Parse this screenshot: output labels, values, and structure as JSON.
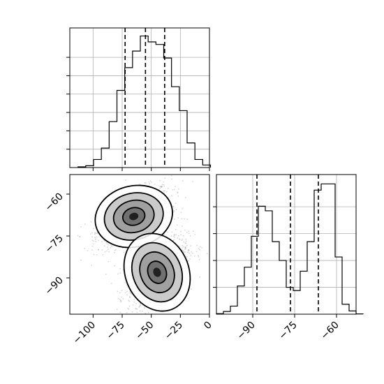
{
  "chart_data": [
    {
      "type": "histogram",
      "panel": "top-left",
      "grid": true,
      "xlim": [
        -120,
        0
      ],
      "bin_start": -113,
      "bin_width": 6.7,
      "counts": [
        0.2,
        0.5,
        2.2,
        5.3,
        12.5,
        21.0,
        27.2,
        31.7,
        35.8,
        34.2,
        33.5,
        29.8,
        22.0,
        15.5,
        6.7,
        2.2,
        0.7
      ],
      "ylim": [
        0,
        38
      ],
      "quantiles": [
        -72.5,
        -55,
        -38.5
      ],
      "ytick_positions": [
        5,
        10,
        15,
        20,
        25,
        30
      ]
    },
    {
      "type": "histogram",
      "panel": "bottom-right",
      "grid": true,
      "xlim": [
        -103,
        -53
      ],
      "bin_start": -103,
      "bin_width": 2.5,
      "counts": [
        0.2,
        1.0,
        3.0,
        10.5,
        17.5,
        29.0,
        40.2,
        38.5,
        27.0,
        20.0,
        10.0,
        8.8,
        16.0,
        27.0,
        46.2,
        48.5,
        48.5,
        21.3,
        3.7,
        1.2,
        0.1
      ],
      "ylim": [
        0,
        52
      ],
      "quantiles": [
        -88.5,
        -76.5,
        -66.5
      ],
      "ytick_positions": [
        10,
        20,
        30,
        40
      ]
    },
    {
      "type": "heatmap",
      "panel": "bottom-left",
      "xlim": [
        -120,
        0
      ],
      "ylim": [
        -103,
        -53
      ],
      "xticks": [
        -100,
        -75,
        -50,
        -25,
        0
      ],
      "yticks": [
        -60,
        -75,
        -90
      ],
      "xtick_labels": [
        "−100",
        "−75",
        "−50",
        "−25",
        "0"
      ],
      "ytick_labels": [
        "−60",
        "−75",
        "−90"
      ],
      "clusters": [
        {
          "cx": -65,
          "cy": -68,
          "sx": 16,
          "sy": 5.2,
          "rho": 0.55,
          "n": 1100
        },
        {
          "cx": -45,
          "cy": -88,
          "sx": 13,
          "sy": 6.8,
          "rho": 0.55,
          "n": 1100
        }
      ]
    }
  ],
  "colors": {
    "ink": "#000000",
    "grid": "#b0b0b0",
    "scatter": "#888888"
  }
}
